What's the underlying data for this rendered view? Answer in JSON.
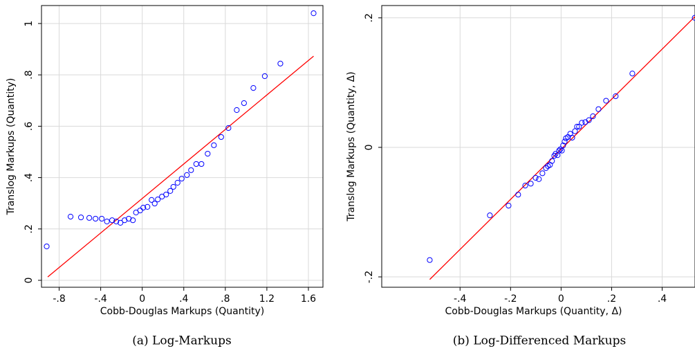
{
  "chart_data": [
    {
      "type": "scatter",
      "x_label": "Cobb-Douglas Markups (Quantity)",
      "y_label": "Translog Markups (Quantity)",
      "caption": "(a)  Log-Markups",
      "x": [
        -0.92,
        -0.69,
        -0.59,
        -0.51,
        -0.45,
        -0.39,
        -0.34,
        -0.29,
        -0.25,
        -0.21,
        -0.17,
        -0.13,
        -0.09,
        -0.06,
        -0.02,
        0.01,
        0.05,
        0.09,
        0.12,
        0.15,
        0.19,
        0.23,
        0.27,
        0.3,
        0.34,
        0.38,
        0.43,
        0.47,
        0.52,
        0.57,
        0.63,
        0.69,
        0.76,
        0.83,
        0.91,
        0.98,
        1.07,
        1.18,
        1.33,
        1.65
      ],
      "y": [
        0.132,
        0.248,
        0.245,
        0.243,
        0.24,
        0.24,
        0.229,
        0.234,
        0.229,
        0.224,
        0.234,
        0.24,
        0.234,
        0.264,
        0.272,
        0.283,
        0.286,
        0.313,
        0.299,
        0.315,
        0.326,
        0.334,
        0.348,
        0.364,
        0.38,
        0.396,
        0.41,
        0.429,
        0.453,
        0.453,
        0.493,
        0.526,
        0.558,
        0.593,
        0.663,
        0.69,
        0.749,
        0.795,
        0.844,
        1.04
      ],
      "color": "#0000ff",
      "fit": {
        "x": [
          -0.91,
          1.65
        ],
        "y": [
          0.013,
          0.873
        ],
        "color": "#ff0000"
      },
      "xlim": [
        -0.97,
        1.74
      ],
      "ylim": [
        -0.027,
        1.07
      ],
      "xticks": [
        {
          "value": -0.8,
          "label": "-.8"
        },
        {
          "value": -0.4,
          "label": "-.4"
        },
        0,
        {
          "value": 0.4,
          "label": ".4"
        },
        {
          "value": 0.8,
          "label": ".8"
        },
        {
          "value": 1.2,
          "label": "1.2"
        },
        {
          "value": 1.6,
          "label": "1.6"
        }
      ],
      "yticks": [
        0,
        {
          "value": 0.2,
          "label": ".2"
        },
        {
          "value": 0.4,
          "label": ".4"
        },
        {
          "value": 0.6,
          "label": ".6"
        },
        {
          "value": 0.8,
          "label": ".8"
        },
        1
      ],
      "grid": true
    },
    {
      "type": "scatter",
      "x_label": "Cobb-Douglas Markups (Quantity, Δ)",
      "y_label": "Translog Markups (Quantity, Δ)",
      "caption": "(b)  Log-Differenced Markups",
      "x": [
        -0.52,
        -0.282,
        -0.208,
        -0.17,
        -0.142,
        -0.12,
        -0.101,
        -0.088,
        -0.074,
        -0.06,
        -0.052,
        -0.044,
        -0.036,
        -0.027,
        -0.022,
        -0.014,
        -0.008,
        -0.003,
        0.003,
        0.008,
        0.014,
        0.019,
        0.027,
        0.036,
        0.044,
        0.055,
        0.063,
        0.071,
        0.082,
        0.096,
        0.11,
        0.126,
        0.148,
        0.178,
        0.216,
        0.282,
        0.529
      ],
      "y": [
        -0.174,
        -0.105,
        -0.09,
        -0.073,
        -0.059,
        -0.056,
        -0.047,
        -0.049,
        -0.04,
        -0.032,
        -0.029,
        -0.027,
        -0.021,
        -0.013,
        -0.01,
        -0.012,
        -0.005,
        -0.003,
        -0.005,
        0.003,
        0.009,
        0.014,
        0.016,
        0.021,
        0.015,
        0.025,
        0.032,
        0.032,
        0.038,
        0.039,
        0.042,
        0.048,
        0.059,
        0.072,
        0.079,
        0.114,
        0.2
      ],
      "color": "#0000ff",
      "fit": {
        "x": [
          -0.52,
          0.53
        ],
        "y": [
          -0.204,
          0.202
        ],
        "color": "#ff0000"
      },
      "xlim": [
        -0.71,
        0.53
      ],
      "ylim": [
        -0.216,
        0.219
      ],
      "xticks": [
        {
          "value": -0.4,
          "label": "-.4"
        },
        {
          "value": -0.2,
          "label": "-.2"
        },
        0,
        {
          "value": 0.2,
          "label": ".2"
        },
        {
          "value": 0.4,
          "label": ".4"
        }
      ],
      "yticks": [
        {
          "value": -0.2,
          "label": "-.2"
        },
        0,
        {
          "value": 0.2,
          "label": ".2"
        }
      ],
      "grid": true
    }
  ]
}
